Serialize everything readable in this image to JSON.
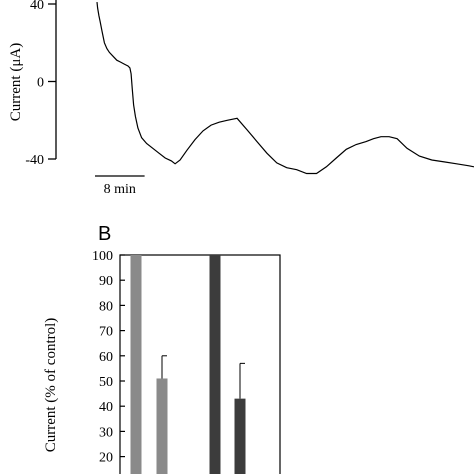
{
  "chart_data": [
    {
      "type": "line",
      "panel": "",
      "ylabel": "Current (μA)",
      "ylim": [
        -40,
        40
      ],
      "yticks": [
        40,
        0,
        -40
      ],
      "scale_bar_label": "8 min",
      "scale_bar_minutes": 8,
      "x_unit": "min",
      "xlim": [
        0,
        60.8
      ],
      "series": [
        {
          "x": [
            0,
            0.1,
            0.3,
            0.5,
            0.8,
            1.2,
            1.6,
            2.0,
            2.6,
            3.2,
            3.8,
            4.4,
            5.0,
            5.3,
            5.5,
            5.7,
            5.9,
            6.2,
            6.6,
            7.2,
            8.0,
            9.0,
            10.0,
            11.0,
            12.0,
            12.6,
            13.4,
            14.5,
            15.8,
            17.1,
            18.4,
            19.7,
            21.0,
            22.6,
            24.2,
            25.8,
            27.4,
            29.0,
            30.6,
            31.4,
            32.2,
            33.8,
            35.4,
            37.0,
            38.6,
            40.2,
            41.8,
            43.4,
            44.6,
            45.8,
            47.1,
            48.4,
            50.0,
            52.0,
            54.0,
            56.0,
            58.0,
            60.0,
            60.8
          ],
          "y": [
            41,
            38,
            34,
            31,
            26,
            20,
            17,
            15,
            13,
            11,
            10,
            9,
            8,
            7,
            4,
            -4,
            -12,
            -18,
            -24,
            -29,
            -32,
            -34.5,
            -37,
            -39.5,
            -41,
            -42.5,
            -40.5,
            -35.5,
            -30,
            -25.5,
            -22.5,
            -21,
            -20,
            -19,
            -25,
            -31,
            -37,
            -42,
            -44.5,
            -45,
            -45.5,
            -47.5,
            -47.5,
            -44,
            -39.5,
            -35,
            -32.5,
            -31,
            -29.5,
            -28.5,
            -28.5,
            -29.5,
            -34.5,
            -38.5,
            -40.5,
            -41.5,
            -42.5,
            -43.5,
            -44
          ]
        }
      ]
    },
    {
      "type": "bar",
      "panel": "B",
      "ylabel": "Current (% of control)",
      "ylim": [
        20,
        100
      ],
      "yticks": [
        100,
        90,
        80,
        70,
        60,
        50,
        40,
        30,
        20
      ],
      "bars": [
        {
          "value": 100,
          "error": 0,
          "color": "#8a8a8a"
        },
        {
          "value": 51,
          "error": 9,
          "color": "#8a8a8a"
        },
        {
          "value": 100,
          "error": 0,
          "color": "#3c3c3c"
        },
        {
          "value": 43,
          "error": 14,
          "color": "#3c3c3c"
        }
      ]
    }
  ]
}
